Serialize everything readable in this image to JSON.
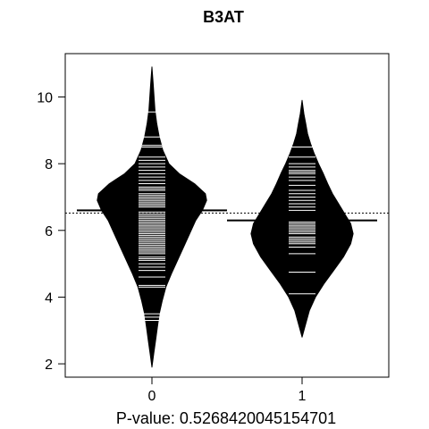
{
  "chart_data": {
    "type": "beanplot",
    "title": "B3AT",
    "xlabel": "P-value: 0.5268420045154701",
    "ylabel": "",
    "categories": [
      "0",
      "1"
    ],
    "ylim": [
      1.6,
      11.3
    ],
    "y_ticks": [
      2,
      4,
      6,
      8,
      10
    ],
    "overall_mean": 6.52,
    "grid": false,
    "legend": "none",
    "series": [
      {
        "name": "0",
        "mean": 6.6,
        "min": 1.9,
        "max": 10.9,
        "density": [
          [
            1.9,
            0.0
          ],
          [
            2.3,
            0.03
          ],
          [
            2.7,
            0.06
          ],
          [
            3.1,
            0.09
          ],
          [
            3.5,
            0.12
          ],
          [
            3.9,
            0.17
          ],
          [
            4.3,
            0.23
          ],
          [
            4.7,
            0.32
          ],
          [
            5.1,
            0.42
          ],
          [
            5.5,
            0.52
          ],
          [
            5.9,
            0.62
          ],
          [
            6.3,
            0.72
          ],
          [
            6.6,
            0.83
          ],
          [
            6.9,
            0.9
          ],
          [
            7.1,
            0.88
          ],
          [
            7.4,
            0.7
          ],
          [
            7.7,
            0.45
          ],
          [
            8.0,
            0.28
          ],
          [
            8.4,
            0.18
          ],
          [
            8.8,
            0.12
          ],
          [
            9.2,
            0.08
          ],
          [
            9.6,
            0.05
          ],
          [
            10.0,
            0.035
          ],
          [
            10.4,
            0.02
          ],
          [
            10.9,
            0.0
          ]
        ],
        "points": [
          3.3,
          3.4,
          3.5,
          4.3,
          4.35,
          4.6,
          4.8,
          4.9,
          5.0,
          5.1,
          5.15,
          5.2,
          5.3,
          5.35,
          5.4,
          5.45,
          5.5,
          5.55,
          5.6,
          5.65,
          5.7,
          5.75,
          5.8,
          5.85,
          5.9,
          5.95,
          6.0,
          6.05,
          6.1,
          6.15,
          6.2,
          6.25,
          6.3,
          6.35,
          6.4,
          6.45,
          6.5,
          6.55,
          6.6,
          6.7,
          6.75,
          6.8,
          6.85,
          6.9,
          6.95,
          7.0,
          7.05,
          7.1,
          7.2,
          7.25,
          7.3,
          7.4,
          7.5,
          7.6,
          7.7,
          7.8,
          7.9,
          8.0,
          8.1,
          8.2,
          8.5,
          8.55,
          8.8,
          9.55
        ]
      },
      {
        "name": "1",
        "mean": 6.3,
        "min": 2.8,
        "max": 9.9,
        "density": [
          [
            2.8,
            0.0
          ],
          [
            3.2,
            0.06
          ],
          [
            3.6,
            0.12
          ],
          [
            4.0,
            0.22
          ],
          [
            4.4,
            0.36
          ],
          [
            4.8,
            0.52
          ],
          [
            5.2,
            0.68
          ],
          [
            5.6,
            0.8
          ],
          [
            5.9,
            0.84
          ],
          [
            6.2,
            0.8
          ],
          [
            6.5,
            0.7
          ],
          [
            6.8,
            0.6
          ],
          [
            7.1,
            0.5
          ],
          [
            7.4,
            0.42
          ],
          [
            7.7,
            0.35
          ],
          [
            8.0,
            0.27
          ],
          [
            8.3,
            0.2
          ],
          [
            8.6,
            0.14
          ],
          [
            8.9,
            0.09
          ],
          [
            9.2,
            0.06
          ],
          [
            9.5,
            0.03
          ],
          [
            9.9,
            0.0
          ]
        ],
        "points": [
          4.1,
          4.75,
          5.3,
          5.5,
          5.6,
          5.65,
          5.7,
          5.75,
          5.8,
          5.9,
          5.95,
          6.0,
          6.05,
          6.1,
          6.15,
          6.2,
          6.25,
          6.6,
          6.7,
          6.8,
          6.9,
          7.0,
          7.1,
          7.2,
          7.35,
          7.5,
          7.6,
          7.7,
          7.75,
          7.8,
          7.9,
          8.0,
          8.2,
          8.5
        ]
      }
    ]
  }
}
